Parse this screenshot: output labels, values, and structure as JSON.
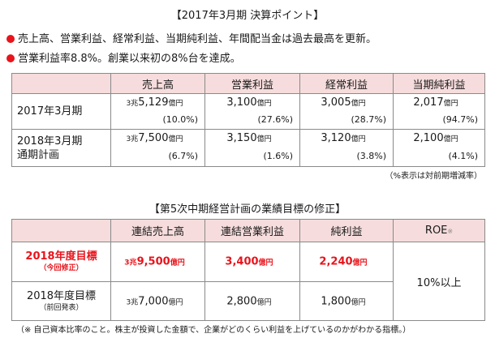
{
  "title": "【2017年3月期 決算ポイント】",
  "bullets": [
    "売上高、営業利益、経常利益、当期純利益、年間配当金は過去最高を更新。",
    "営業利益率8.8%。創業以来初の8%台を達成。"
  ],
  "colors": {
    "accent_red": "#e8141c",
    "header_pink": "#f6dcdc"
  },
  "table1": {
    "headers": [
      "売上高",
      "営業利益",
      "経常利益",
      "当期純利益"
    ],
    "rows": [
      {
        "label_line1": "2017年3月期",
        "label_line2": "",
        "cells": [
          {
            "prefix": "3兆",
            "value": "5,129",
            "unit": "億円",
            "pct": "(10.0%)"
          },
          {
            "prefix": "",
            "value": "3,100",
            "unit": "億円",
            "pct": "(27.6%)"
          },
          {
            "prefix": "",
            "value": "3,005",
            "unit": "億円",
            "pct": "(28.7%)"
          },
          {
            "prefix": "",
            "value": "2,017",
            "unit": "億円",
            "pct": "(94.7%)"
          }
        ]
      },
      {
        "label_line1": "2018年3月期",
        "label_line2": "通期計画",
        "cells": [
          {
            "prefix": "3兆",
            "value": "7,500",
            "unit": "億円",
            "pct": "(6.7%)"
          },
          {
            "prefix": "",
            "value": "3,150",
            "unit": "億円",
            "pct": "(1.6%)"
          },
          {
            "prefix": "",
            "value": "3,120",
            "unit": "億円",
            "pct": "(3.8%)"
          },
          {
            "prefix": "",
            "value": "2,100",
            "unit": "億円",
            "pct": "(4.1%)"
          }
        ]
      }
    ],
    "note": "（%表示は対前期増減率）"
  },
  "table2": {
    "title": "【第5次中期経営計画の業績目標の修正】",
    "headers": [
      "連結売上高",
      "連結営業利益",
      "純利益",
      "ROE"
    ],
    "roe_mark": "※",
    "rows": [
      {
        "label_main": "2018年度目標",
        "label_sub": "（今回修正）",
        "cells": [
          {
            "prefix": "3兆",
            "value": "9,500",
            "unit": "億円"
          },
          {
            "prefix": "",
            "value": "3,400",
            "unit": "億円"
          },
          {
            "prefix": "",
            "value": "2,240",
            "unit": "億円"
          }
        ]
      },
      {
        "label_main": "2018年度目標",
        "label_sub": "（前回発表）",
        "cells": [
          {
            "prefix": "3兆",
            "value": "7,000",
            "unit": "億円"
          },
          {
            "prefix": "",
            "value": "2,800",
            "unit": "億円"
          },
          {
            "prefix": "",
            "value": "1,800",
            "unit": "億円"
          }
        ]
      }
    ],
    "roe_value": "10%以上"
  },
  "footnote": "（※ 自己資本比率のこと。株主が投資した金額で、企業がどのくらい利益を上げているのかがわかる指標。）"
}
